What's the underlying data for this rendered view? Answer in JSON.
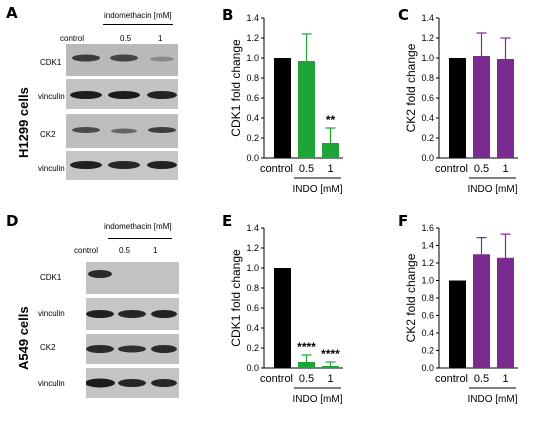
{
  "panels": {
    "a": "A",
    "b": "B",
    "c": "C",
    "d": "D",
    "e": "E",
    "f": "F"
  },
  "blots": {
    "top": {
      "cell_line": "H1299 cells",
      "treatment": "indomethacin [mM]",
      "lanes": [
        "control",
        "0.5",
        "1"
      ],
      "rows": [
        "CDK1",
        "vinculin",
        "CK2",
        "vinculin"
      ]
    },
    "bottom": {
      "cell_line": "A549 cells",
      "treatment": "indomethacin [mM]",
      "lanes": [
        "control",
        "0.5",
        "1"
      ],
      "rows": [
        "CDK1",
        "vinculin",
        "CK2",
        "vinculin"
      ]
    }
  },
  "chart_data": [
    {
      "panel": "B",
      "type": "bar",
      "categories": [
        "control",
        "0.5",
        "1"
      ],
      "values": [
        1.0,
        0.97,
        0.15
      ],
      "errors": [
        0,
        0.27,
        0.15
      ],
      "colors": [
        "#000000",
        "#1ea535",
        "#1ea535"
      ],
      "annotations": [
        "",
        "",
        "**"
      ],
      "ylabel": "CDK1 fold change",
      "xgroup_label": "INDO [mM]",
      "ylim": [
        0,
        1.4
      ],
      "yticks": [
        "0.0",
        "0.2",
        "0.4",
        "0.6",
        "0.8",
        "1.0",
        "1.2",
        "1.4"
      ]
    },
    {
      "panel": "C",
      "type": "bar",
      "categories": [
        "control",
        "0.5",
        "1"
      ],
      "values": [
        1.0,
        1.02,
        0.99
      ],
      "errors": [
        0,
        0.23,
        0.21
      ],
      "colors": [
        "#000000",
        "#7b2a8e",
        "#7b2a8e"
      ],
      "annotations": [
        "",
        "",
        ""
      ],
      "ylabel": "CK2 fold change",
      "xgroup_label": "INDO [mM]",
      "ylim": [
        0,
        1.4
      ],
      "yticks": [
        "0.0",
        "0.2",
        "0.4",
        "0.6",
        "0.8",
        "1.0",
        "1.2",
        "1.4"
      ]
    },
    {
      "panel": "E",
      "type": "bar",
      "categories": [
        "control",
        "0.5",
        "1"
      ],
      "values": [
        1.0,
        0.06,
        0.02
      ],
      "errors": [
        0,
        0.07,
        0.04
      ],
      "colors": [
        "#000000",
        "#1ea535",
        "#1ea535"
      ],
      "annotations": [
        "",
        "****",
        "****"
      ],
      "ylabel": "CDK1 fold change",
      "xgroup_label": "INDO [mM]",
      "ylim": [
        0,
        1.4
      ],
      "yticks": [
        "0.0",
        "0.2",
        "0.4",
        "0.6",
        "0.8",
        "1.0",
        "1.2",
        "1.4"
      ]
    },
    {
      "panel": "F",
      "type": "bar",
      "categories": [
        "control",
        "0.5",
        "1"
      ],
      "values": [
        1.0,
        1.3,
        1.26
      ],
      "errors": [
        0,
        0.19,
        0.27
      ],
      "colors": [
        "#000000",
        "#7b2a8e",
        "#7b2a8e"
      ],
      "annotations": [
        "",
        "",
        ""
      ],
      "ylabel": "CK2 fold change",
      "xgroup_label": "INDO [mM]",
      "ylim": [
        0,
        1.6
      ],
      "yticks": [
        "0.0",
        "0.2",
        "0.4",
        "0.6",
        "0.8",
        "1.0",
        "1.2",
        "1.4",
        "1.6"
      ]
    }
  ]
}
